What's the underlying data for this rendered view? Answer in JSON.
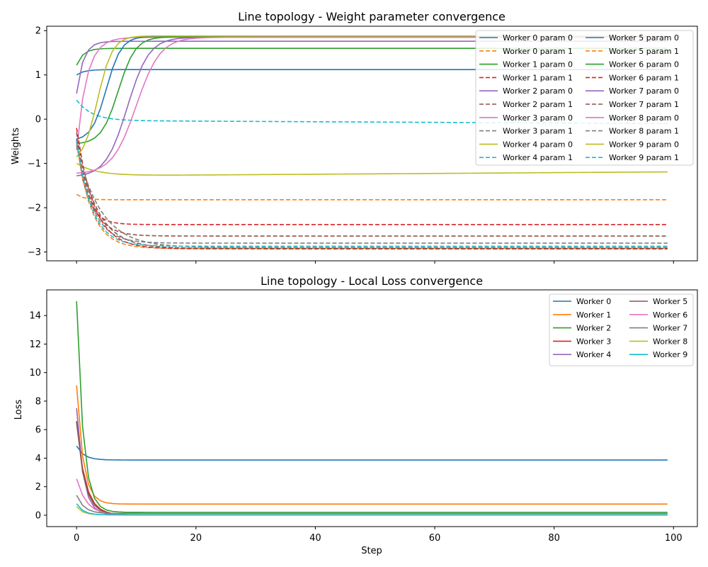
{
  "chart_data": [
    {
      "type": "line",
      "title": "Line topology - Weight parameter convergence",
      "xlabel": "",
      "ylabel": "Weights",
      "xlim": [
        -5,
        104
      ],
      "ylim": [
        -3.2,
        2.1
      ],
      "x_ticks": [
        0,
        20,
        40,
        60,
        80,
        100
      ],
      "x_tick_labels_visible": false,
      "y_ticks": [
        -3,
        -2,
        -1,
        0,
        1,
        2
      ],
      "y_tick_labels": [
        "−3",
        "−2",
        "−1",
        "0",
        "1",
        "2"
      ],
      "grid": false,
      "legend_position": "top-right",
      "legend_columns": 2,
      "steps": 100,
      "series": [
        {
          "name": "Worker 0 param 0",
          "color": "#1f77b4",
          "dash": "solid",
          "start": 1.0,
          "end": 1.12,
          "rate": 0.8
        },
        {
          "name": "Worker 0 param 1",
          "color": "#ff7f0e",
          "dash": "dashed",
          "start": -1.7,
          "end": -1.82,
          "rate": 0.8
        },
        {
          "name": "Worker 1 param 0",
          "color": "#2ca02c",
          "dash": "solid",
          "start": 1.22,
          "end": 1.6,
          "rate": 0.9
        },
        {
          "name": "Worker 1 param 1",
          "color": "#d62728",
          "dash": "dashed",
          "start": -0.5,
          "end": -2.38,
          "rate": 0.6
        },
        {
          "name": "Worker 2 param 0",
          "color": "#9467bd",
          "dash": "solid",
          "start": 0.58,
          "end": 1.76,
          "rate": 0.9
        },
        {
          "name": "Worker 2 param 1",
          "color": "#8c564b",
          "dash": "dashed",
          "start": -0.3,
          "end": -2.64,
          "rate": 0.45
        },
        {
          "name": "Worker 3 param 0",
          "color": "#e377c2",
          "dash": "solid",
          "start": -0.7,
          "end": 1.85,
          "rate": 0.6
        },
        {
          "name": "Worker 3 param 1",
          "color": "#7f7f7f",
          "dash": "dashed",
          "start": -0.45,
          "end": -2.8,
          "rate": 0.4
        },
        {
          "name": "Worker 4 param 0",
          "color": "#bcbd22",
          "dash": "solid",
          "start": -1.0,
          "end": -1.28,
          "rate": 0.3,
          "drift": 0.0009
        },
        {
          "name": "Worker 4 param 1",
          "color": "#17becf",
          "dash": "dashed",
          "start": 0.43,
          "end": -0.03,
          "rate": 0.4,
          "drift": -0.0007
        },
        {
          "name": "Worker 5 param 0",
          "color": "#1f77b4",
          "dash": "solid",
          "start": -0.45,
          "end": 1.87,
          "sigmoid": true,
          "mid": 5.0,
          "k": 0.8
        },
        {
          "name": "Worker 5 param 1",
          "color": "#ff7f0e",
          "dash": "dashed",
          "start": -0.55,
          "end": -2.92,
          "rate": 0.4
        },
        {
          "name": "Worker 6 param 0",
          "color": "#2ca02c",
          "dash": "solid",
          "start": -0.55,
          "end": 1.86,
          "sigmoid": true,
          "mid": 7.0,
          "k": 0.7
        },
        {
          "name": "Worker 6 param 1",
          "color": "#d62728",
          "dash": "dashed",
          "start": -0.2,
          "end": -2.93,
          "rate": 0.35
        },
        {
          "name": "Worker 7 param 0",
          "color": "#9467bd",
          "dash": "solid",
          "start": -1.28,
          "end": 1.85,
          "sigmoid": true,
          "mid": 8.5,
          "k": 0.55
        },
        {
          "name": "Worker 7 param 1",
          "color": "#8c564b",
          "dash": "dashed",
          "start": -0.45,
          "end": -2.92,
          "rate": 0.3
        },
        {
          "name": "Worker 8 param 0",
          "color": "#e377c2",
          "dash": "solid",
          "start": -1.22,
          "end": 1.85,
          "sigmoid": true,
          "mid": 10.0,
          "k": 0.5
        },
        {
          "name": "Worker 8 param 1",
          "color": "#7f7f7f",
          "dash": "dashed",
          "start": -0.6,
          "end": -2.9,
          "rate": 0.25
        },
        {
          "name": "Worker 9 param 0",
          "color": "#bcbd22",
          "dash": "solid",
          "start": -0.85,
          "end": 1.88,
          "sigmoid": true,
          "mid": 3.5,
          "k": 0.8
        },
        {
          "name": "Worker 9 param 1",
          "color": "#17becf",
          "dash": "dashed",
          "start": -0.5,
          "end": -2.87,
          "rate": 0.4
        }
      ]
    },
    {
      "type": "line",
      "title": "Line topology - Local Loss convergence",
      "xlabel": "Step",
      "ylabel": "Loss",
      "xlim": [
        -5,
        104
      ],
      "ylim": [
        -0.8,
        15.8
      ],
      "x_ticks": [
        0,
        20,
        40,
        60,
        80,
        100
      ],
      "x_tick_labels": [
        "0",
        "20",
        "40",
        "60",
        "80",
        "100"
      ],
      "y_ticks": [
        0,
        2,
        4,
        6,
        8,
        10,
        12,
        14
      ],
      "y_tick_labels": [
        "0",
        "2",
        "4",
        "6",
        "8",
        "10",
        "12",
        "14"
      ],
      "grid": false,
      "legend_position": "top-right",
      "legend_columns": 2,
      "steps": 100,
      "series": [
        {
          "name": "Worker 0",
          "color": "#1f77b4",
          "start": 4.85,
          "end": 3.87,
          "rate": 0.8
        },
        {
          "name": "Worker 1",
          "color": "#ff7f0e",
          "start": 9.1,
          "end": 0.78,
          "rate": 0.9
        },
        {
          "name": "Worker 2",
          "color": "#2ca02c",
          "start": 15.0,
          "end": 0.2,
          "rate": 0.9
        },
        {
          "name": "Worker 3",
          "color": "#d62728",
          "start": 6.6,
          "end": 0.02,
          "rate": 0.7
        },
        {
          "name": "Worker 4",
          "color": "#9467bd",
          "start": 7.5,
          "end": 0.02,
          "rate": 0.9
        },
        {
          "name": "Worker 5",
          "color": "#8c564b",
          "start": 6.5,
          "end": 0.02,
          "rate": 0.75
        },
        {
          "name": "Worker 6",
          "color": "#e377c2",
          "start": 2.55,
          "end": 0.02,
          "rate": 0.6
        },
        {
          "name": "Worker 7",
          "color": "#7f7f7f",
          "start": 1.4,
          "end": 0.12,
          "rate": 0.8
        },
        {
          "name": "Worker 8",
          "color": "#bcbd22",
          "start": 0.6,
          "end": 0.03,
          "rate": 1.0
        },
        {
          "name": "Worker 9",
          "color": "#17becf",
          "start": 0.8,
          "end": 0.02,
          "rate": 0.9
        }
      ]
    }
  ]
}
